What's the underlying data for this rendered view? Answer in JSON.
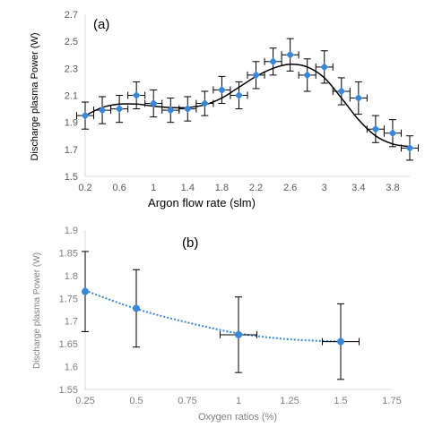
{
  "chart_data": [
    {
      "type": "scatter",
      "panel_label": "(a)",
      "title": "",
      "xlabel": "Argon flow rate (slm)",
      "ylabel": "Discharge plasma Power (W)",
      "xlim": [
        0.2,
        4.0
      ],
      "ylim": [
        1.5,
        2.7
      ],
      "x_ticks": [
        "0.2",
        "0.6",
        "1",
        "1.4",
        "1.8",
        "2.2",
        "2.6",
        "3",
        "3.4",
        "3.8"
      ],
      "y_ticks": [
        "1.5",
        "1.7",
        "1.9",
        "2.1",
        "2.3",
        "2.5",
        "2.7"
      ],
      "grid": false,
      "legend": "none",
      "marker_color": "#3a87d6",
      "curve_color": "#000000",
      "series": [
        {
          "x": [
            0.2,
            0.4,
            0.6,
            0.8,
            1.0,
            1.2,
            1.4,
            1.6,
            1.8,
            2.0,
            2.2,
            2.4,
            2.6,
            2.8,
            3.0,
            3.2,
            3.4,
            3.6,
            3.8,
            4.0
          ],
          "y": [
            1.95,
            1.99,
            2.0,
            2.1,
            2.04,
            1.99,
            2.0,
            2.04,
            2.14,
            2.1,
            2.25,
            2.35,
            2.4,
            2.25,
            2.31,
            2.13,
            2.08,
            1.85,
            1.82,
            1.71
          ],
          "y_err": [
            0.1,
            0.1,
            0.1,
            0.1,
            0.1,
            0.09,
            0.09,
            0.09,
            0.1,
            0.1,
            0.1,
            0.1,
            0.12,
            0.12,
            0.12,
            0.1,
            0.12,
            0.1,
            0.1,
            0.09
          ],
          "x_err": [
            0.1,
            0.1,
            0.1,
            0.1,
            0.1,
            0.1,
            0.1,
            0.1,
            0.1,
            0.1,
            0.1,
            0.1,
            0.1,
            0.1,
            0.1,
            0.1,
            0.1,
            0.1,
            0.1,
            0.1
          ]
        }
      ],
      "trendline": "polynomial",
      "trendline_points": {
        "x": [
          0.2,
          0.4,
          0.6,
          0.8,
          1.0,
          1.2,
          1.4,
          1.6,
          1.8,
          2.0,
          2.2,
          2.4,
          2.6,
          2.8,
          3.0,
          3.2,
          3.4,
          3.6,
          3.8,
          4.0
        ],
        "y": [
          1.95,
          2.01,
          2.035,
          2.035,
          2.02,
          2.01,
          2.01,
          2.03,
          2.08,
          2.16,
          2.24,
          2.3,
          2.33,
          2.31,
          2.23,
          2.08,
          1.92,
          1.8,
          1.74,
          1.72
        ]
      }
    },
    {
      "type": "scatter",
      "panel_label": "(b)",
      "title": "",
      "xlabel": "Oxygen ratios (%)",
      "ylabel": "Discharge plasma Power (W)",
      "xlim": [
        0.25,
        1.75
      ],
      "ylim": [
        1.55,
        1.9
      ],
      "x_ticks": [
        "0.25",
        "0.5",
        "0.75",
        "1",
        "1.25",
        "1.5",
        "1.75"
      ],
      "y_ticks": [
        "1.55",
        "1.6",
        "1.65",
        "1.7",
        "1.75",
        "1.8",
        "1.85",
        "1.9"
      ],
      "grid": false,
      "legend": "none",
      "marker_color": "#3a87d6",
      "axis_text_color": "#7f7f7f",
      "series": [
        {
          "x": [
            0.25,
            0.5,
            1.0,
            1.5
          ],
          "y": [
            1.765,
            1.728,
            1.67,
            1.655
          ],
          "y_err": [
            0.088,
            0.085,
            0.083,
            0.083
          ],
          "x_err": [
            0.0,
            0.0,
            0.09,
            0.09
          ]
        }
      ],
      "trendline": "dotted polynomial",
      "trendline_points": {
        "x": [
          0.25,
          0.5,
          0.75,
          1.0,
          1.25,
          1.5
        ],
        "y": [
          1.767,
          1.727,
          1.697,
          1.673,
          1.66,
          1.655
        ]
      }
    }
  ]
}
